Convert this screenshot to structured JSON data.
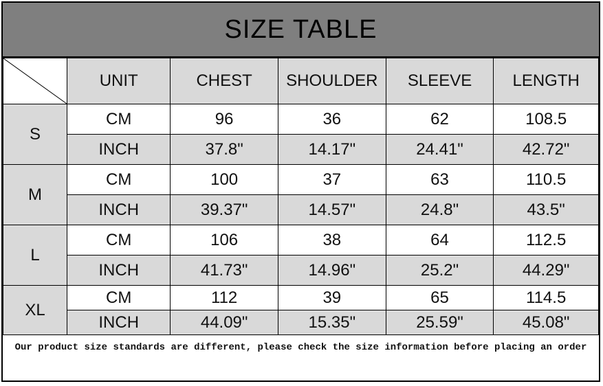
{
  "title": "SIZE TABLE",
  "headers": [
    "UNIT",
    "CHEST",
    "SHOULDER",
    "SLEEVE",
    "LENGTH"
  ],
  "sizes": [
    {
      "size": "S",
      "cm": [
        "CM",
        "96",
        "36",
        "62",
        "108.5"
      ],
      "inch": [
        "INCH",
        "37.8\"",
        "14.17\"",
        "24.41\"",
        "42.72\""
      ]
    },
    {
      "size": "M",
      "cm": [
        "CM",
        "100",
        "37",
        "63",
        "110.5"
      ],
      "inch": [
        "INCH",
        "39.37\"",
        "14.57\"",
        "24.8\"",
        "43.5\""
      ]
    },
    {
      "size": "L",
      "cm": [
        "CM",
        "106",
        "38",
        "64",
        "112.5"
      ],
      "inch": [
        "INCH",
        "41.73\"",
        "14.96\"",
        "25.2\"",
        "44.29\""
      ]
    },
    {
      "size": "XL",
      "cm": [
        "CM",
        "112",
        "39",
        "65",
        "114.5"
      ],
      "inch": [
        "INCH",
        "44.09\"",
        "15.35\"",
        "25.59\"",
        "45.08\""
      ]
    }
  ],
  "note": "Our product size standards are different, please check the size information before placing an order",
  "colors": {
    "title_bg": "#7f7f7f",
    "cell_gray": "#d9d9d9"
  }
}
